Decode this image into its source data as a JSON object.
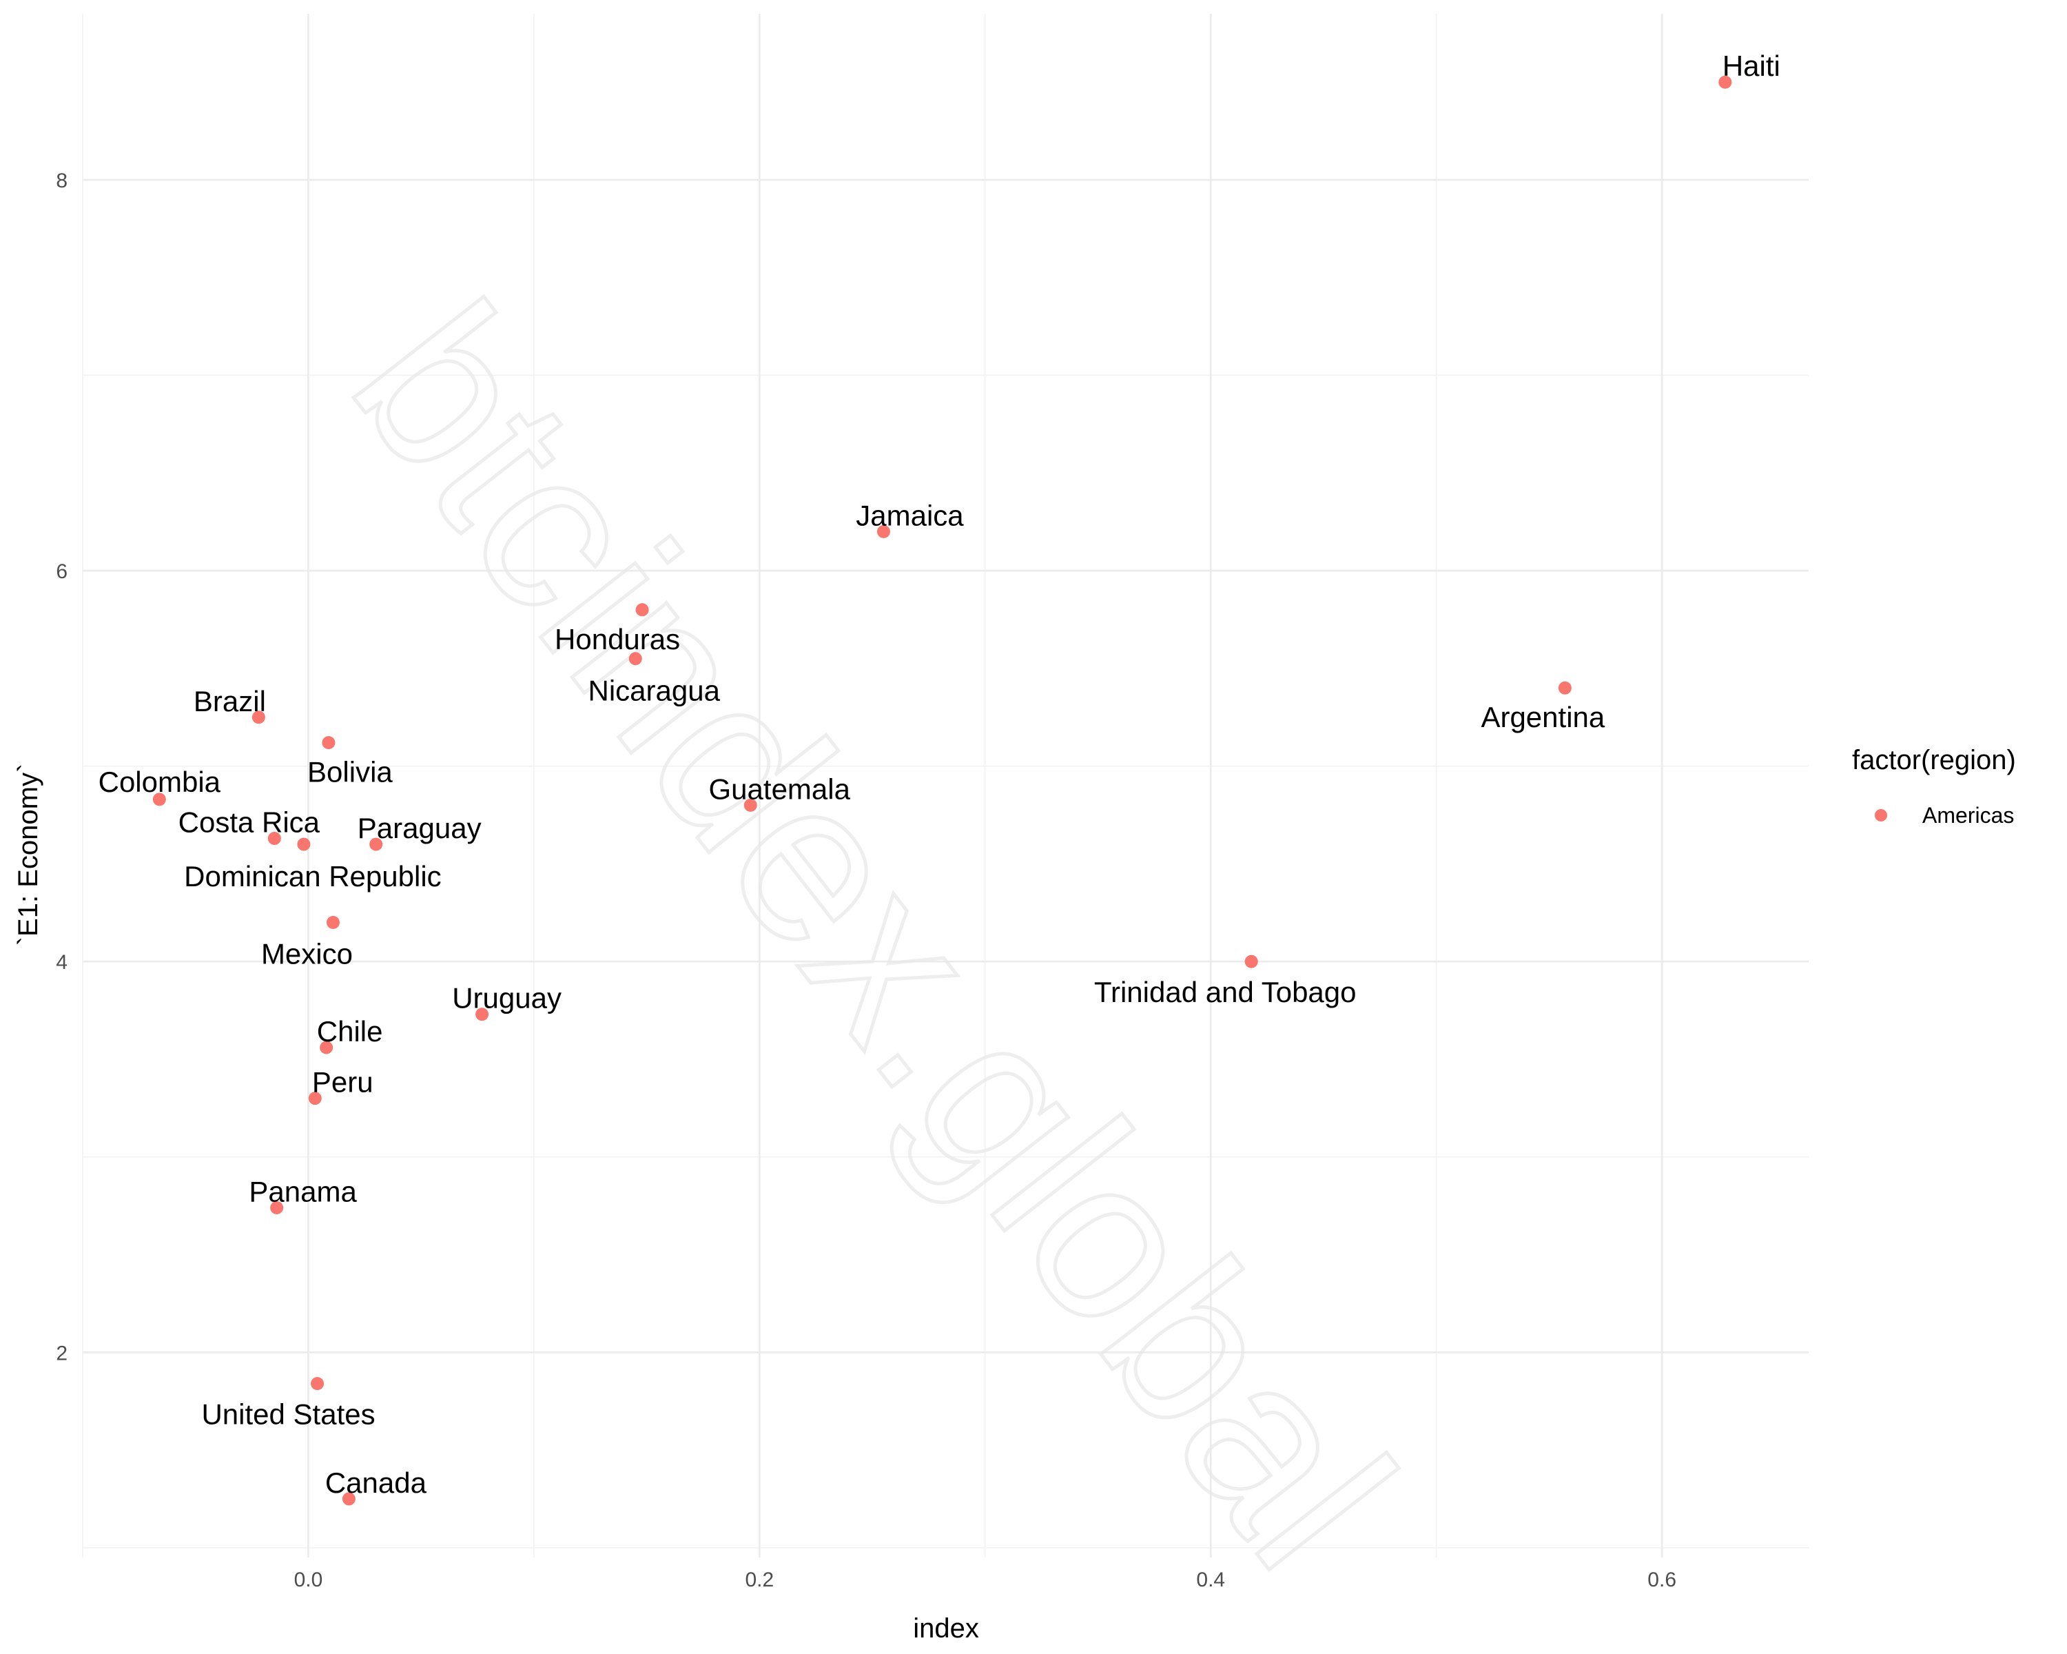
{
  "watermark": "btcindex.global",
  "chart_data": {
    "type": "scatter",
    "title": "",
    "xlabel": "index",
    "ylabel": "`E1: Economy`",
    "xlim": [
      -0.1,
      0.665
    ],
    "ylim": [
      0.95,
      8.85
    ],
    "x_ticks": [
      0.0,
      0.2,
      0.4,
      0.6
    ],
    "x_tick_labels": [
      "0.0",
      "0.2",
      "0.4",
      "0.6"
    ],
    "y_ticks": [
      2,
      4,
      6,
      8
    ],
    "y_tick_labels": [
      "2",
      "4",
      "6",
      "8"
    ],
    "grid": true,
    "point_color": "#F8766D",
    "legend": {
      "title": "factor(region)",
      "position": "right",
      "entries": [
        {
          "label": "Americas",
          "color": "#F8766D"
        }
      ]
    },
    "points": [
      {
        "label": "Haiti",
        "x": 0.628,
        "y": 8.5
      },
      {
        "label": "Jamaica",
        "x": 0.255,
        "y": 6.2
      },
      {
        "label": "Honduras",
        "x": 0.148,
        "y": 5.8
      },
      {
        "label": "Nicaragua",
        "x": 0.145,
        "y": 5.55
      },
      {
        "label": "Argentina",
        "x": 0.557,
        "y": 5.4
      },
      {
        "label": "Brazil",
        "x": -0.022,
        "y": 5.25
      },
      {
        "label": "Bolivia",
        "x": 0.009,
        "y": 5.12
      },
      {
        "label": "Colombia",
        "x": -0.066,
        "y": 4.83
      },
      {
        "label": "Guatemala",
        "x": 0.196,
        "y": 4.8
      },
      {
        "label": "Costa Rica",
        "x": -0.015,
        "y": 4.63
      },
      {
        "label": "Dominican Republic",
        "x": -0.002,
        "y": 4.6
      },
      {
        "label": "Paraguay",
        "x": 0.03,
        "y": 4.6
      },
      {
        "label": "Mexico",
        "x": 0.011,
        "y": 4.2
      },
      {
        "label": "Trinidad and Tobago",
        "x": 0.418,
        "y": 4.0
      },
      {
        "label": "Uruguay",
        "x": 0.077,
        "y": 3.73
      },
      {
        "label": "Chile",
        "x": 0.008,
        "y": 3.56
      },
      {
        "label": "Peru",
        "x": 0.003,
        "y": 3.3
      },
      {
        "label": "Panama",
        "x": -0.014,
        "y": 2.74
      },
      {
        "label": "United States",
        "x": 0.004,
        "y": 1.84
      },
      {
        "label": "Canada",
        "x": 0.018,
        "y": 1.25
      }
    ]
  }
}
